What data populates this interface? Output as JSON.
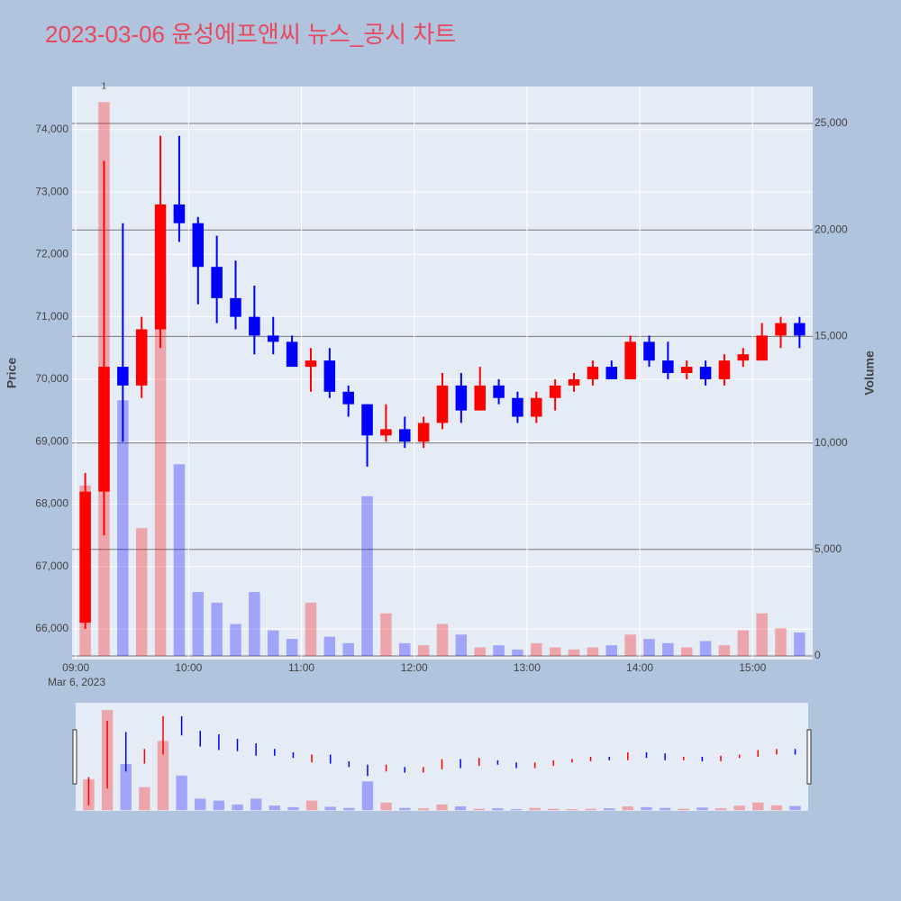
{
  "chart_data": {
    "type": "candlestick",
    "title": "2023-03-06 윤성에프앤씨 뉴스_공시 차트",
    "y_label": "Price",
    "y2_label": "Volume",
    "date_label": "Mar 6, 2023",
    "annotation": "1",
    "increasing_color": "#ff0000",
    "decreasing_color": "#0000ff",
    "x": [
      "09:00",
      "09:10",
      "09:20",
      "09:30",
      "09:40",
      "09:50",
      "10:00",
      "10:10",
      "10:20",
      "10:30",
      "10:40",
      "10:50",
      "11:00",
      "11:10",
      "11:20",
      "11:30",
      "11:40",
      "11:50",
      "12:00",
      "12:10",
      "12:20",
      "12:30",
      "12:40",
      "12:50",
      "13:00",
      "13:10",
      "13:20",
      "13:30",
      "13:40",
      "13:50",
      "14:00",
      "14:10",
      "14:20",
      "14:30",
      "14:40",
      "14:50",
      "15:00",
      "15:10",
      "15:20"
    ],
    "open": [
      66100,
      68200,
      70200,
      69900,
      70800,
      72800,
      72500,
      71800,
      71300,
      71000,
      70700,
      70600,
      70200,
      70300,
      69800,
      69600,
      69100,
      69200,
      69000,
      69300,
      69900,
      69500,
      69900,
      69700,
      69400,
      69700,
      69900,
      70000,
      70200,
      70000,
      70600,
      70300,
      70100,
      70200,
      70000,
      70300,
      70300,
      70700,
      70900
    ],
    "high": [
      68500,
      73500,
      72500,
      71000,
      73900,
      73900,
      72600,
      72300,
      71900,
      71500,
      71000,
      70700,
      70500,
      70500,
      69900,
      69600,
      69600,
      69400,
      69400,
      70100,
      70100,
      70200,
      70000,
      69800,
      69800,
      70000,
      70100,
      70300,
      70300,
      70700,
      70700,
      70600,
      70300,
      70300,
      70400,
      70500,
      70900,
      71000,
      71000
    ],
    "low": [
      66000,
      67500,
      69000,
      69700,
      70500,
      72200,
      71200,
      70900,
      70800,
      70400,
      70400,
      70200,
      69800,
      69700,
      69400,
      68600,
      69000,
      68900,
      68900,
      69200,
      69300,
      69500,
      69600,
      69300,
      69300,
      69500,
      69800,
      69900,
      70000,
      70000,
      70200,
      70000,
      70000,
      69900,
      69900,
      70200,
      70300,
      70500,
      70500
    ],
    "close": [
      68200,
      70200,
      69900,
      70800,
      72800,
      72500,
      71800,
      71300,
      71000,
      70700,
      70600,
      70200,
      70300,
      69800,
      69600,
      69100,
      69200,
      69000,
      69300,
      69900,
      69500,
      69900,
      69700,
      69400,
      69700,
      69900,
      70000,
      70200,
      70000,
      70600,
      70300,
      70100,
      70200,
      70000,
      70300,
      70400,
      70700,
      70900,
      70700
    ],
    "volume": [
      8000,
      26000,
      12000,
      6000,
      18000,
      9000,
      3000,
      2500,
      1500,
      3000,
      1200,
      800,
      2500,
      900,
      600,
      7500,
      2000,
      600,
      500,
      1500,
      1000,
      400,
      500,
      300,
      600,
      400,
      300,
      400,
      500,
      1000,
      800,
      600,
      400,
      700,
      500,
      1200,
      2000,
      1300,
      1100
    ],
    "xlim": [
      "08:58",
      "15:32"
    ],
    "xticks": [
      "09:00",
      "10:00",
      "11:00",
      "12:00",
      "13:00",
      "14:00",
      "15:00"
    ],
    "ylim": [
      65510,
      74690
    ],
    "yticks": [
      {
        "value": 66000,
        "label": "66,000"
      },
      {
        "value": 67000,
        "label": "67,000"
      },
      {
        "value": 68000,
        "label": "68,000"
      },
      {
        "value": 69000,
        "label": "69,000"
      },
      {
        "value": 70000,
        "label": "70,000"
      },
      {
        "value": 71000,
        "label": "71,000"
      },
      {
        "value": 72000,
        "label": "72,000"
      },
      {
        "value": 73000,
        "label": "73,000"
      },
      {
        "value": 74000,
        "label": "74,000"
      }
    ],
    "y2lim": [
      -169,
      26734
    ],
    "y2ticks": [
      0,
      {
        "value": 5000,
        "label": "5,000"
      },
      {
        "value": 10000,
        "label": "10,000"
      },
      {
        "value": 15000,
        "label": "15,000"
      },
      {
        "value": 20000,
        "label": "20,000"
      },
      {
        "value": 25000,
        "label": "25,000"
      }
    ]
  }
}
